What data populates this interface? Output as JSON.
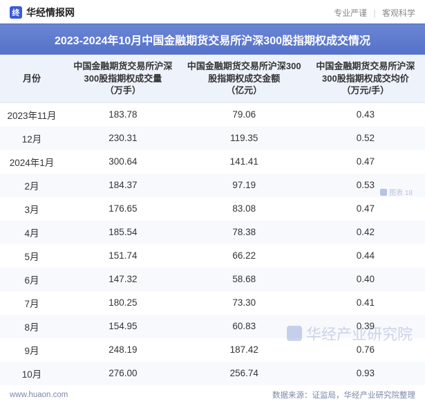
{
  "header": {
    "brand_icon_text": "终",
    "brand_text": "华经情报网",
    "slogan_left": "专业严谨",
    "slogan_right": "客观科学"
  },
  "title": "2023-2024年10月中国金融期货交易所沪深300股指期权成交情况",
  "table": {
    "columns": [
      "月份",
      "中国金融期货交易所沪深300股指期权成交量\n（万手）",
      "中国金融期货交易所沪深300股指期权成交金额\n（亿元）",
      "中国金融期货交易所沪深300股指期权成交均价\n（万元/手）"
    ],
    "rows": [
      [
        "2023年11月",
        "183.78",
        "79.06",
        "0.43"
      ],
      [
        "12月",
        "230.31",
        "119.35",
        "0.52"
      ],
      [
        "2024年1月",
        "300.64",
        "141.41",
        "0.47"
      ],
      [
        "2月",
        "184.37",
        "97.19",
        "0.53"
      ],
      [
        "3月",
        "176.65",
        "83.08",
        "0.47"
      ],
      [
        "4月",
        "185.54",
        "78.38",
        "0.42"
      ],
      [
        "5月",
        "151.74",
        "66.22",
        "0.44"
      ],
      [
        "6月",
        "147.32",
        "58.68",
        "0.40"
      ],
      [
        "7月",
        "180.25",
        "73.30",
        "0.41"
      ],
      [
        "8月",
        "154.95",
        "60.83",
        "0.39"
      ],
      [
        "9月",
        "248.19",
        "187.42",
        "0.76"
      ],
      [
        "10月",
        "276.00",
        "256.74",
        "0.93"
      ]
    ]
  },
  "footer": {
    "url": "www.huaon.com",
    "source": "数据来源：证监局，华经产业研究院整理"
  },
  "watermark": {
    "text": "华经产业研究院",
    "tag_text": "图表 18"
  },
  "colors": {
    "title_grad_top": "#6b85d4",
    "title_grad_bot": "#5572c9",
    "header_bg": "#eef2fb",
    "row_alt": "#f7f9fd",
    "text": "#333333",
    "muted": "#7a89a8"
  }
}
